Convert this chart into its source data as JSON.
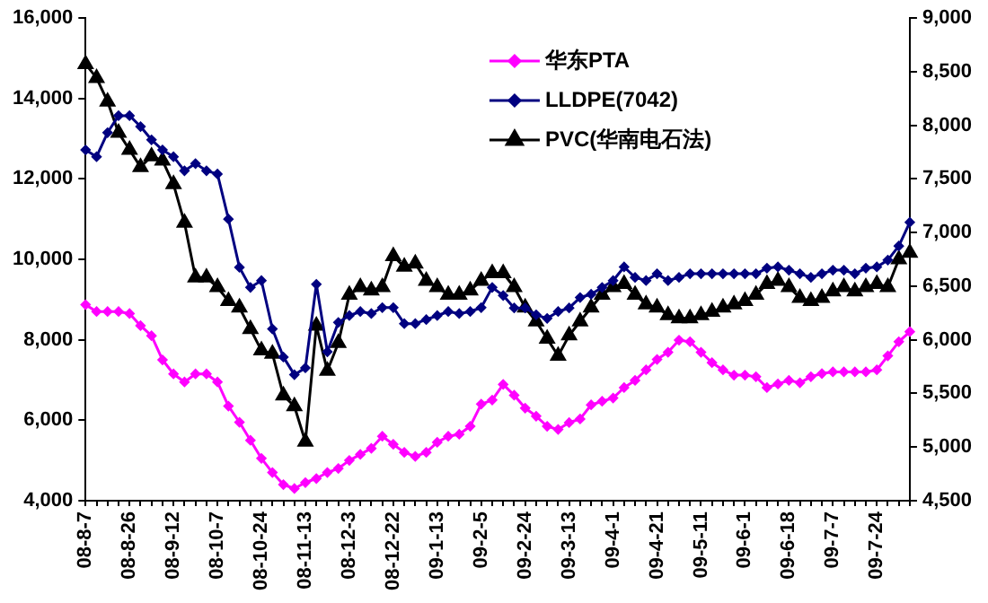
{
  "chart_data": {
    "type": "line",
    "categories": [
      "08-8-7",
      null,
      null,
      null,
      "08-8-26",
      null,
      null,
      null,
      "08-9-12",
      null,
      null,
      null,
      "08-10-7",
      null,
      null,
      null,
      "08-10-24",
      null,
      null,
      null,
      "08-11-13",
      null,
      null,
      null,
      "08-12-3",
      null,
      null,
      null,
      "08-12-22",
      null,
      null,
      null,
      "09-1-13",
      null,
      null,
      null,
      "09-2-5",
      null,
      null,
      null,
      "09-2-24",
      null,
      null,
      null,
      "09-3-13",
      null,
      null,
      null,
      "09-4-1",
      null,
      null,
      null,
      "09-4-21",
      null,
      null,
      null,
      "09-5-11",
      null,
      null,
      null,
      "09-6-1",
      null,
      null,
      null,
      "09-6-18",
      null,
      null,
      null,
      "09-7-7",
      null,
      null,
      null,
      "09-7-24",
      null,
      null,
      null
    ],
    "series": [
      {
        "name": "华东PTA",
        "color": "#ff00ff",
        "marker": "diamond",
        "values": [
          8870,
          8700,
          8700,
          8700,
          8650,
          8350,
          8100,
          7500,
          7150,
          6950,
          7150,
          7150,
          6950,
          6350,
          5950,
          5500,
          5050,
          4700,
          4400,
          4300,
          4450,
          4550,
          4700,
          4800,
          5000,
          5150,
          5300,
          5600,
          5400,
          5200,
          5100,
          5200,
          5450,
          5600,
          5650,
          5850,
          6400,
          6500,
          6890,
          6620,
          6300,
          6100,
          5850,
          5770,
          5940,
          6030,
          6380,
          6470,
          6550,
          6810,
          6990,
          7250,
          7510,
          7690,
          7990,
          7950,
          7690,
          7430,
          7250,
          7120,
          7120,
          7080,
          6810,
          6900,
          6990,
          6930,
          7080,
          7160,
          7200,
          7200,
          7200,
          7200,
          7250,
          7600,
          7950,
          8200
        ]
      },
      {
        "name": "LLDPE(7042)",
        "color": "#000080",
        "marker": "diamond",
        "values": [
          12720,
          12550,
          13150,
          13570,
          13570,
          13300,
          12970,
          12720,
          12550,
          12200,
          12380,
          12200,
          12120,
          11000,
          9800,
          9300,
          9470,
          8270,
          7570,
          7130,
          7300,
          9380,
          7700,
          8430,
          8600,
          8700,
          8650,
          8800,
          8800,
          8400,
          8400,
          8500,
          8600,
          8700,
          8650,
          8700,
          8800,
          9300,
          9100,
          8790,
          8790,
          8620,
          8530,
          8700,
          8790,
          9050,
          9130,
          9300,
          9470,
          9810,
          9550,
          9470,
          9640,
          9470,
          9550,
          9640,
          9640,
          9640,
          9640,
          9640,
          9640,
          9640,
          9780,
          9810,
          9730,
          9640,
          9550,
          9640,
          9730,
          9730,
          9640,
          9780,
          9810,
          9980,
          10330,
          10920
        ]
      },
      {
        "name": "PVC(华南电石法)",
        "color": "#000000",
        "marker": "triangle",
        "axis": "y2",
        "values": [
          8570,
          8440,
          8220,
          7930,
          7770,
          7610,
          7710,
          7670,
          7450,
          7090,
          6580,
          6580,
          6490,
          6360,
          6300,
          6100,
          5900,
          5870,
          5480,
          5380,
          5050,
          6130,
          5710,
          5970,
          6420,
          6490,
          6460,
          6490,
          6780,
          6680,
          6710,
          6550,
          6490,
          6420,
          6420,
          6460,
          6550,
          6620,
          6620,
          6490,
          6300,
          6170,
          6010,
          5850,
          6040,
          6170,
          6300,
          6420,
          6490,
          6520,
          6420,
          6330,
          6300,
          6230,
          6200,
          6200,
          6230,
          6260,
          6300,
          6330,
          6360,
          6420,
          6520,
          6550,
          6490,
          6390,
          6360,
          6390,
          6450,
          6490,
          6450,
          6490,
          6520,
          6490,
          6750,
          6810
        ]
      }
    ],
    "ylim": [
      4000,
      16000
    ],
    "yticks": [
      {
        "value": 4000,
        "label": "4,000"
      },
      {
        "value": 6000,
        "label": "6,000"
      },
      {
        "value": 8000,
        "label": "8,000"
      },
      {
        "value": 10000,
        "label": "10,000"
      },
      {
        "value": 12000,
        "label": "12,000"
      },
      {
        "value": 14000,
        "label": "14,000"
      },
      {
        "value": 16000,
        "label": "16,000"
      }
    ],
    "y2lim": [
      4500,
      9000
    ],
    "y2ticks": [
      {
        "value": 4500,
        "label": "4,500"
      },
      {
        "value": 5000,
        "label": "5,000"
      },
      {
        "value": 5500,
        "label": "5,500"
      },
      {
        "value": 6000,
        "label": "6,000"
      },
      {
        "value": 6500,
        "label": "6,500"
      },
      {
        "value": 7000,
        "label": "7,000"
      },
      {
        "value": 7500,
        "label": "7,500"
      },
      {
        "value": 8000,
        "label": "8,000"
      },
      {
        "value": 8500,
        "label": "8,500"
      },
      {
        "value": 9000,
        "label": "9,000"
      }
    ],
    "legend": "top right",
    "line_style": "solid"
  }
}
